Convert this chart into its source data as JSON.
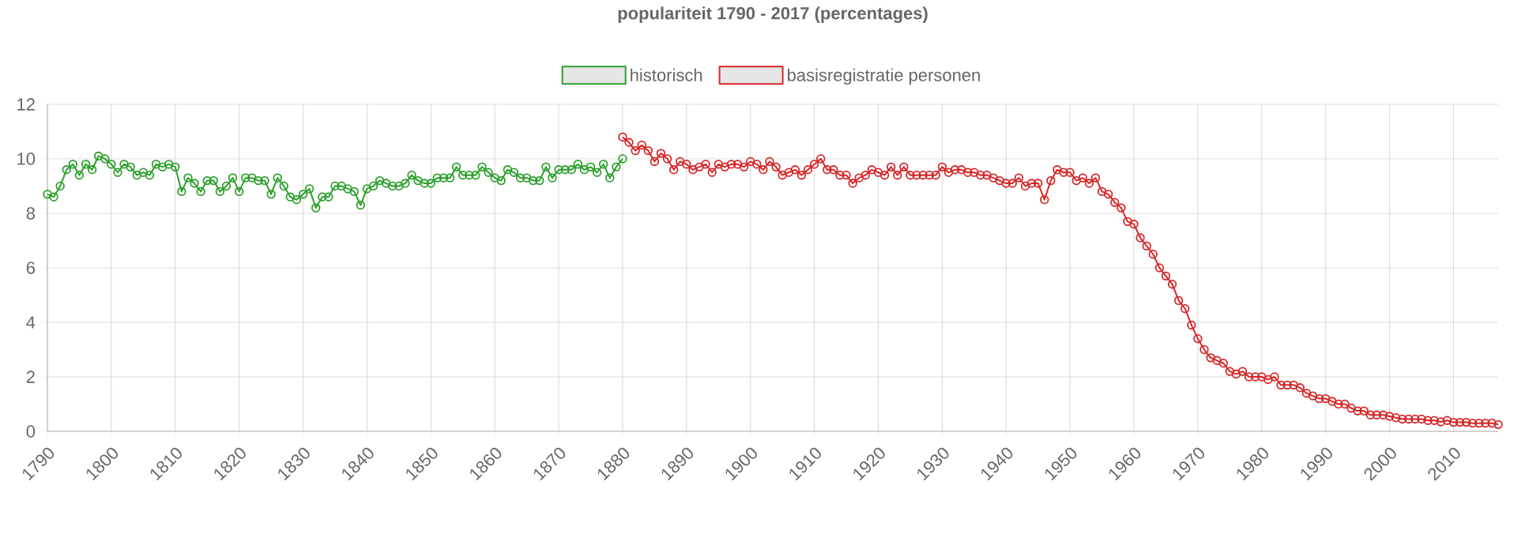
{
  "chart_data": {
    "type": "line",
    "title": "populariteit 1790 - 2017 (percentages)",
    "xlim": [
      1790,
      2017
    ],
    "xticks": [
      1790,
      1800,
      1810,
      1820,
      1830,
      1840,
      1850,
      1860,
      1870,
      1880,
      1890,
      1900,
      1910,
      1920,
      1930,
      1940,
      1950,
      1960,
      1970,
      1980,
      1990,
      2000,
      2010
    ],
    "ylim": [
      0,
      12
    ],
    "yticks": [
      0,
      2,
      4,
      6,
      8,
      10,
      12
    ],
    "grid": true,
    "legend": "top",
    "marker": "circle",
    "line_style": "solid",
    "series": [
      {
        "name": "historisch",
        "color": "#2ca02c",
        "x": [
          1790,
          1791,
          1792,
          1793,
          1794,
          1795,
          1796,
          1797,
          1798,
          1799,
          1800,
          1801,
          1802,
          1803,
          1804,
          1805,
          1806,
          1807,
          1808,
          1809,
          1810,
          1811,
          1812,
          1813,
          1814,
          1815,
          1816,
          1817,
          1818,
          1819,
          1820,
          1821,
          1822,
          1823,
          1824,
          1825,
          1826,
          1827,
          1828,
          1829,
          1830,
          1831,
          1832,
          1833,
          1834,
          1835,
          1836,
          1837,
          1838,
          1839,
          1840,
          1841,
          1842,
          1843,
          1844,
          1845,
          1846,
          1847,
          1848,
          1849,
          1850,
          1851,
          1852,
          1853,
          1854,
          1855,
          1856,
          1857,
          1858,
          1859,
          1860,
          1861,
          1862,
          1863,
          1864,
          1865,
          1866,
          1867,
          1868,
          1869,
          1870,
          1871,
          1872,
          1873,
          1874,
          1875,
          1876,
          1877,
          1878,
          1879,
          1880
        ],
        "values": [
          8.7,
          8.6,
          9.0,
          9.6,
          9.8,
          9.4,
          9.8,
          9.6,
          10.1,
          10.0,
          9.8,
          9.5,
          9.8,
          9.7,
          9.4,
          9.5,
          9.4,
          9.8,
          9.7,
          9.8,
          9.7,
          8.8,
          9.3,
          9.1,
          8.8,
          9.2,
          9.2,
          8.8,
          9.0,
          9.3,
          8.8,
          9.3,
          9.3,
          9.2,
          9.2,
          8.7,
          9.3,
          9.0,
          8.6,
          8.5,
          8.7,
          8.9,
          8.2,
          8.6,
          8.6,
          9.0,
          9.0,
          8.9,
          8.8,
          8.3,
          8.9,
          9.0,
          9.2,
          9.1,
          9.0,
          9.0,
          9.1,
          9.4,
          9.2,
          9.1,
          9.1,
          9.3,
          9.3,
          9.3,
          9.7,
          9.4,
          9.4,
          9.4,
          9.7,
          9.5,
          9.3,
          9.2,
          9.6,
          9.5,
          9.3,
          9.3,
          9.2,
          9.2,
          9.7,
          9.3,
          9.6,
          9.6,
          9.6,
          9.8,
          9.6,
          9.7,
          9.5,
          9.8,
          9.3,
          9.7,
          10.0
        ]
      },
      {
        "name": "basisregistratie personen",
        "color": "#d62728",
        "x": [
          1880,
          1881,
          1882,
          1883,
          1884,
          1885,
          1886,
          1887,
          1888,
          1889,
          1890,
          1891,
          1892,
          1893,
          1894,
          1895,
          1896,
          1897,
          1898,
          1899,
          1900,
          1901,
          1902,
          1903,
          1904,
          1905,
          1906,
          1907,
          1908,
          1909,
          1910,
          1911,
          1912,
          1913,
          1914,
          1915,
          1916,
          1917,
          1918,
          1919,
          1920,
          1921,
          1922,
          1923,
          1924,
          1925,
          1926,
          1927,
          1928,
          1929,
          1930,
          1931,
          1932,
          1933,
          1934,
          1935,
          1936,
          1937,
          1938,
          1939,
          1940,
          1941,
          1942,
          1943,
          1944,
          1945,
          1946,
          1947,
          1948,
          1949,
          1950,
          1951,
          1952,
          1953,
          1954,
          1955,
          1956,
          1957,
          1958,
          1959,
          1960,
          1961,
          1962,
          1963,
          1964,
          1965,
          1966,
          1967,
          1968,
          1969,
          1970,
          1971,
          1972,
          1973,
          1974,
          1975,
          1976,
          1977,
          1978,
          1979,
          1980,
          1981,
          1982,
          1983,
          1984,
          1985,
          1986,
          1987,
          1988,
          1989,
          1990,
          1991,
          1992,
          1993,
          1994,
          1995,
          1996,
          1997,
          1998,
          1999,
          2000,
          2001,
          2002,
          2003,
          2004,
          2005,
          2006,
          2007,
          2008,
          2009,
          2010,
          2011,
          2012,
          2013,
          2014,
          2015,
          2016,
          2017
        ],
        "values": [
          10.8,
          10.6,
          10.3,
          10.5,
          10.3,
          9.9,
          10.2,
          10.0,
          9.6,
          9.9,
          9.8,
          9.6,
          9.7,
          9.8,
          9.5,
          9.8,
          9.7,
          9.8,
          9.8,
          9.7,
          9.9,
          9.8,
          9.6,
          9.9,
          9.7,
          9.4,
          9.5,
          9.6,
          9.4,
          9.6,
          9.8,
          10.0,
          9.6,
          9.6,
          9.4,
          9.4,
          9.1,
          9.3,
          9.4,
          9.6,
          9.5,
          9.4,
          9.7,
          9.4,
          9.7,
          9.4,
          9.4,
          9.4,
          9.4,
          9.4,
          9.7,
          9.5,
          9.6,
          9.6,
          9.5,
          9.5,
          9.4,
          9.4,
          9.3,
          9.2,
          9.1,
          9.1,
          9.3,
          9.0,
          9.1,
          9.1,
          8.5,
          9.2,
          9.6,
          9.5,
          9.5,
          9.2,
          9.3,
          9.1,
          9.3,
          8.8,
          8.7,
          8.4,
          8.2,
          7.7,
          7.6,
          7.1,
          6.8,
          6.5,
          6.0,
          5.7,
          5.4,
          4.8,
          4.5,
          3.9,
          3.4,
          3.0,
          2.7,
          2.6,
          2.5,
          2.2,
          2.1,
          2.2,
          2.0,
          2.0,
          2.0,
          1.9,
          2.0,
          1.7,
          1.7,
          1.7,
          1.6,
          1.4,
          1.3,
          1.2,
          1.2,
          1.1,
          1.0,
          1.0,
          0.85,
          0.75,
          0.75,
          0.6,
          0.6,
          0.6,
          0.55,
          0.5,
          0.45,
          0.45,
          0.45,
          0.45,
          0.4,
          0.4,
          0.35,
          0.4,
          0.33,
          0.33,
          0.33,
          0.3,
          0.3,
          0.3,
          0.3,
          0.25
        ]
      }
    ]
  }
}
